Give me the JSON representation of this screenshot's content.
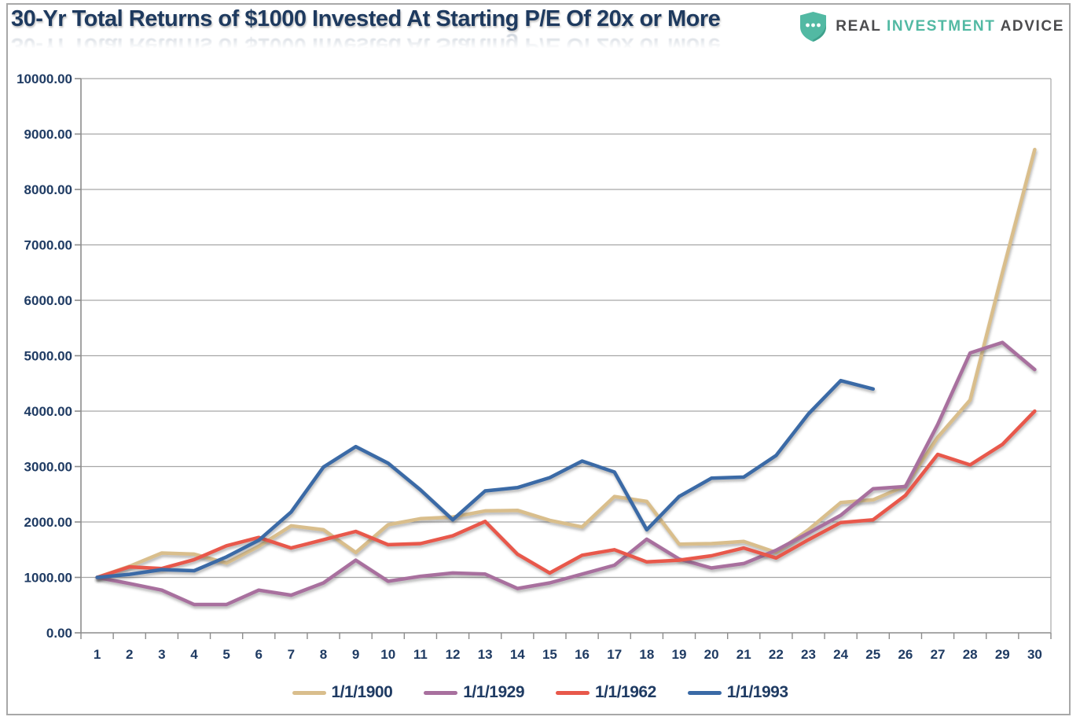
{
  "header": {
    "title": "30-Yr Total Returns of $1000 Invested At Starting P/E Of 20x or More",
    "logo": {
      "word1": "REAL",
      "word2": "INVESTMENT",
      "word3": "ADVICE",
      "shield_color": "#52b9a3",
      "shield_dots": 3
    }
  },
  "colors": {
    "grid": "#a6a6a6",
    "axis": "#8c8c8c",
    "axis_label": "#1f3b63",
    "title": "#1e3a5f",
    "background": "#ffffff",
    "frame_border": "#a8a8a8"
  },
  "chart_data": {
    "type": "line",
    "title": "30-Yr Total Returns of $1000 Invested At Starting P/E Of 20x or More",
    "xlabel": "",
    "ylabel": "",
    "categories": [
      1,
      2,
      3,
      4,
      5,
      6,
      7,
      8,
      9,
      10,
      11,
      12,
      13,
      14,
      15,
      16,
      17,
      18,
      19,
      20,
      21,
      22,
      23,
      24,
      25,
      26,
      27,
      28,
      29,
      30
    ],
    "ylim": [
      0,
      10000
    ],
    "y_tick_step": 1000,
    "y_tick_labels": [
      "0.00",
      "1000.00",
      "2000.00",
      "3000.00",
      "4000.00",
      "5000.00",
      "6000.00",
      "7000.00",
      "8000.00",
      "9000.00",
      "10000.00"
    ],
    "grid": true,
    "legend_position": "bottom",
    "series": [
      {
        "name": "1/1/1900",
        "color": "#d9be8c",
        "values": [
          1000,
          1200,
          1440,
          1420,
          1260,
          1560,
          1930,
          1860,
          1450,
          1950,
          2060,
          2090,
          2200,
          2210,
          2030,
          1910,
          2460,
          2370,
          1600,
          1610,
          1650,
          1450,
          1860,
          2350,
          2400,
          2650,
          3530,
          4200,
          6500,
          8720
        ]
      },
      {
        "name": "1/1/1929",
        "color": "#a8709e",
        "values": [
          1000,
          890,
          770,
          510,
          510,
          770,
          680,
          900,
          1310,
          930,
          1020,
          1080,
          1060,
          800,
          900,
          1060,
          1220,
          1690,
          1330,
          1170,
          1250,
          1490,
          1800,
          2120,
          2600,
          2640,
          3760,
          5050,
          5240,
          4750
        ]
      },
      {
        "name": "1/1/1962",
        "color": "#e8584b",
        "values": [
          1000,
          1190,
          1160,
          1320,
          1570,
          1720,
          1530,
          1680,
          1830,
          1590,
          1610,
          1750,
          2010,
          1420,
          1080,
          1400,
          1500,
          1280,
          1310,
          1390,
          1530,
          1350,
          1680,
          1990,
          2040,
          2480,
          3220,
          3030,
          3400,
          4000
        ]
      },
      {
        "name": "1/1/1993",
        "color": "#3a6aa6",
        "values": [
          1000,
          1055,
          1140,
          1120,
          1370,
          1670,
          2180,
          2990,
          3360,
          3060,
          2580,
          2040,
          2560,
          2620,
          2800,
          3100,
          2900,
          1860,
          2460,
          2790,
          2810,
          3200,
          3950,
          4550,
          4400
        ]
      }
    ]
  }
}
